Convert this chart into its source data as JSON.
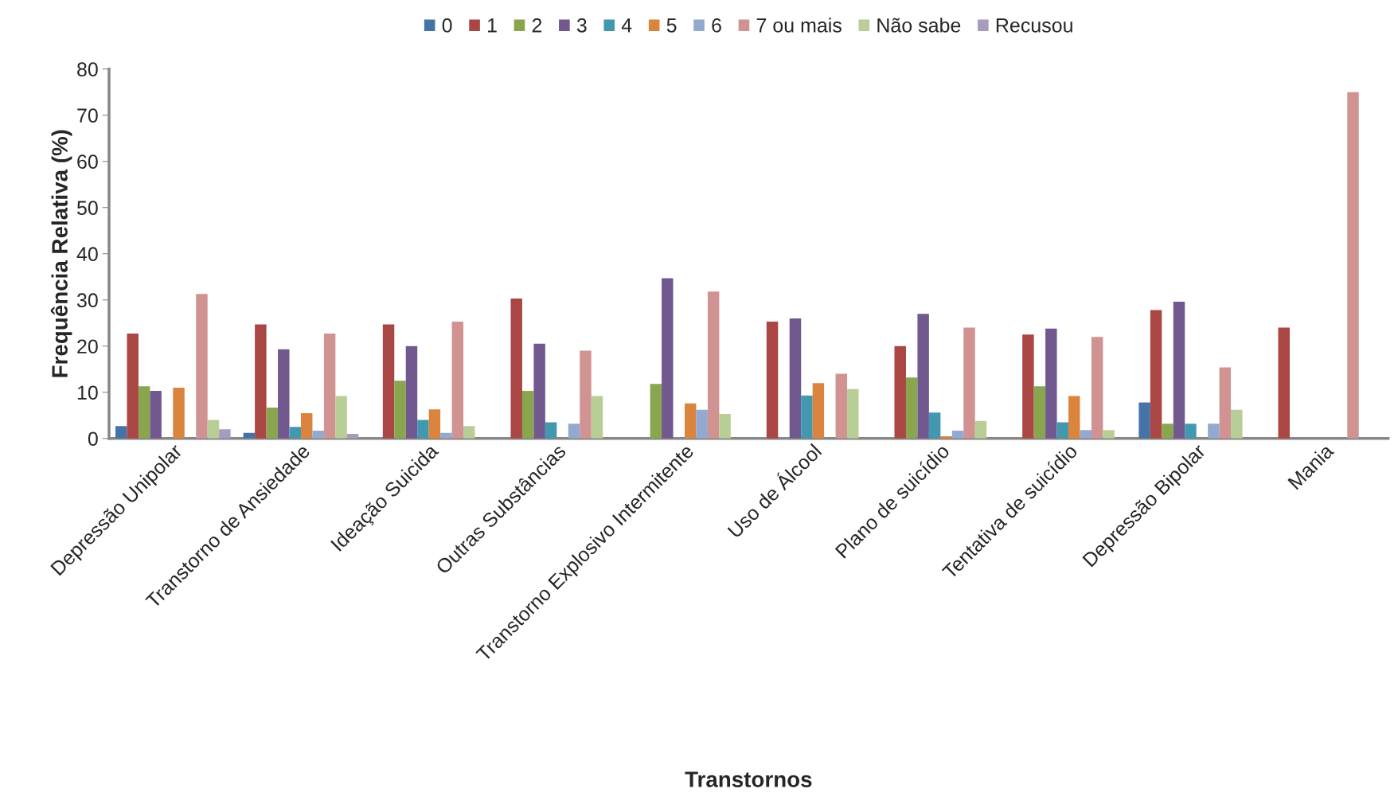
{
  "chart_data": {
    "type": "bar",
    "xlabel": "Transtornos",
    "ylabel": "Frequência Relativa (%)",
    "categories": [
      "Depressão Unipolar",
      "Transtorno de Ansiedade",
      "Ideação Suicida",
      "Outras Substâncias",
      "Transtorno Explosivo Intermitente",
      "Uso de Álcool",
      "Plano de suicídio",
      "Tentativa de suicídio",
      "Depressão Bipolar",
      "Mania"
    ],
    "series": [
      {
        "name": "0",
        "color": "#4572a7",
        "values": [
          2.7,
          1.2,
          0,
          0,
          0,
          0,
          0,
          0,
          7.8,
          0
        ]
      },
      {
        "name": "1",
        "color": "#aa4643",
        "values": [
          22.7,
          24.7,
          24.7,
          30.3,
          0,
          25.3,
          20,
          22.5,
          27.8,
          24
        ]
      },
      {
        "name": "2",
        "color": "#89a54e",
        "values": [
          11.3,
          6.7,
          12.5,
          10.3,
          11.8,
          0,
          13.2,
          11.3,
          3.2,
          0
        ]
      },
      {
        "name": "3",
        "color": "#71588f",
        "values": [
          10.3,
          19.3,
          20,
          20.5,
          34.7,
          26,
          27,
          23.8,
          29.6,
          0
        ]
      },
      {
        "name": "4",
        "color": "#4198af",
        "values": [
          0,
          2.5,
          4,
          3.5,
          0,
          9.3,
          5.6,
          3.5,
          3.2,
          0
        ]
      },
      {
        "name": "5",
        "color": "#db843d",
        "values": [
          11,
          5.5,
          6.3,
          0,
          7.6,
          12,
          0.5,
          9.2,
          0,
          0
        ]
      },
      {
        "name": "6",
        "color": "#93a9cf",
        "values": [
          0,
          1.7,
          1.2,
          3.2,
          6.2,
          0,
          1.7,
          1.8,
          3.2,
          0
        ]
      },
      {
        "name": "7 ou mais",
        "color": "#d19392",
        "values": [
          31.3,
          22.7,
          25.3,
          19,
          31.8,
          14,
          24,
          22,
          15.4,
          75
        ]
      },
      {
        "name": "Não sabe",
        "color": "#b9cd96",
        "values": [
          4,
          9.2,
          2.7,
          9.2,
          5.3,
          10.7,
          3.8,
          1.8,
          6.2,
          0
        ]
      },
      {
        "name": "Recusou",
        "color": "#a99bbd",
        "values": [
          2,
          1,
          0,
          0,
          0,
          0,
          0,
          0,
          0,
          0
        ]
      }
    ],
    "ylim": [
      0,
      80
    ],
    "yticks": [
      0,
      10,
      20,
      30,
      40,
      50,
      60,
      70,
      80
    ],
    "grid": false,
    "legend": "top"
  }
}
